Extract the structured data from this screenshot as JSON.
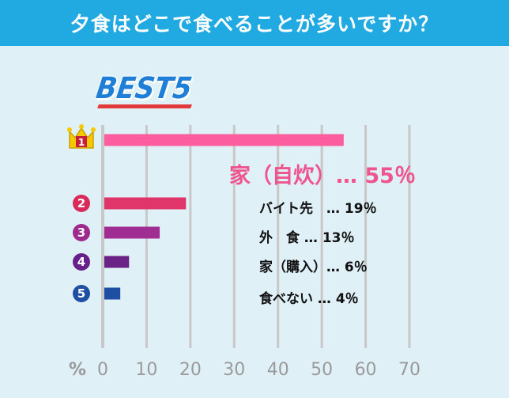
{
  "header": {
    "title": "夕食はどこで食べることが多いですか？"
  },
  "badge": {
    "text": "BEST5"
  },
  "colors": {
    "header_bg": "#21a9e2",
    "page_bg": "#dff0f7",
    "grid": "#c8c8c8",
    "axis_text": "#9a9a9a",
    "top_label": "#f0548f"
  },
  "chart_data": {
    "type": "bar",
    "orientation": "horizontal",
    "categories": [
      "家（自炊）",
      "バイト先",
      "外食",
      "家（購入）",
      "食べない"
    ],
    "ranks": [
      "1",
      "2",
      "3",
      "4",
      "5"
    ],
    "values": [
      55,
      19,
      13,
      6,
      4
    ],
    "labels": [
      "家（自炊）…  55％",
      "バイト先　…  19％",
      "外　食 …  13％",
      "家（購入）…   6％",
      "食べない  …   4％"
    ],
    "bar_colors": [
      "#fb5d9e",
      "#e0356a",
      "#a02d92",
      "#6b2287",
      "#1f4fa3"
    ],
    "rank_colors": [
      "#f5c800",
      "#d92a5a",
      "#9c2a8f",
      "#67208a",
      "#1f4fa3"
    ],
    "x_unit": "%",
    "xlim": [
      0,
      70
    ],
    "xticks": [
      0,
      10,
      20,
      30,
      40,
      50,
      60,
      70
    ],
    "grid": true
  }
}
